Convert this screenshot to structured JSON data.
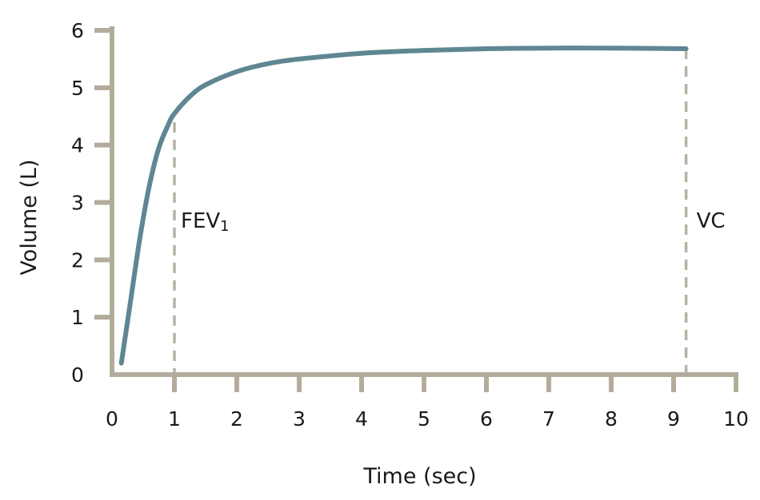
{
  "chart_data": {
    "type": "line",
    "xlabel": "Time (sec)",
    "ylabel": "Volume (L)",
    "xlim": [
      0,
      10
    ],
    "ylim": [
      0,
      6
    ],
    "xticks": [
      "0",
      "1",
      "2",
      "3",
      "4",
      "5",
      "6",
      "7",
      "8",
      "9",
      "10"
    ],
    "yticks": [
      "0",
      "1",
      "2",
      "3",
      "4",
      "5",
      "6"
    ],
    "grid": false,
    "series": [
      {
        "values": [
          {
            "x": 0.15,
            "y": 0.2
          },
          {
            "x": 0.3,
            "y": 1.3
          },
          {
            "x": 0.45,
            "y": 2.4
          },
          {
            "x": 0.6,
            "y": 3.3
          },
          {
            "x": 0.75,
            "y": 3.95
          },
          {
            "x": 0.9,
            "y": 4.35
          },
          {
            "x": 1.0,
            "y": 4.55
          },
          {
            "x": 1.25,
            "y": 4.85
          },
          {
            "x": 1.5,
            "y": 5.05
          },
          {
            "x": 2.0,
            "y": 5.28
          },
          {
            "x": 2.5,
            "y": 5.42
          },
          {
            "x": 3.0,
            "y": 5.5
          },
          {
            "x": 4.0,
            "y": 5.6
          },
          {
            "x": 5.0,
            "y": 5.65
          },
          {
            "x": 6.0,
            "y": 5.68
          },
          {
            "x": 7.0,
            "y": 5.69
          },
          {
            "x": 8.0,
            "y": 5.69
          },
          {
            "x": 9.2,
            "y": 5.68
          }
        ]
      }
    ],
    "annotations": [
      {
        "label": "FEV",
        "subscript": "1",
        "x": 1.0,
        "y": 4.4
      },
      {
        "label": "VC",
        "x": 9.2,
        "y": 5.68
      }
    ],
    "colors": {
      "line": "#5f8793",
      "axis": "#b3ac9c",
      "marker_line": "#b8b2a3"
    }
  }
}
